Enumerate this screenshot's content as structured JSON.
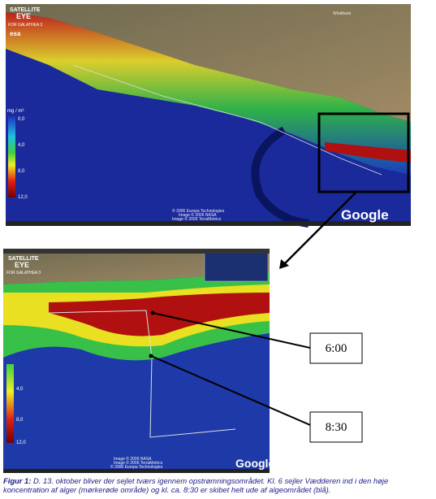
{
  "top_image": {
    "logo": [
      "SATELLITE",
      "EYE",
      "FOR GALATHEA 3"
    ],
    "agency": "esa",
    "colorbar_unit": "mg / m³",
    "colorbar_labels": [
      "0,0",
      "4,0",
      "8,0",
      "12,0"
    ],
    "place": "Windhoek",
    "credits": [
      "© 2006 Europa Technologies",
      "Image © 2006 NASA",
      "Image © 2006 TerraMetrics"
    ],
    "brand": "Google"
  },
  "bottom_image": {
    "logo": [
      "SATELLITE",
      "EYE",
      "FOR GALATHEA 3"
    ],
    "colorbar_labels": [
      "4,0",
      "8,0",
      "12,0"
    ],
    "credits": [
      "Image © 2006 NASA",
      "Image © 2006 TerraMetrics",
      "© 2006 Europa Technologies"
    ],
    "brand": "Google"
  },
  "callouts": [
    "6:00",
    "8:30"
  ],
  "caption": {
    "label": "Figur 1:",
    "text": "D. 13. oktober bliver der sejlet tværs igennem opstrømningsområdet. Kl. 6 sejler Vædderen ind i den høje koncentration af alger (mørkerøde område) og kl. ca. 8:30 er skibet helt ude af algeområdet (blå)."
  }
}
